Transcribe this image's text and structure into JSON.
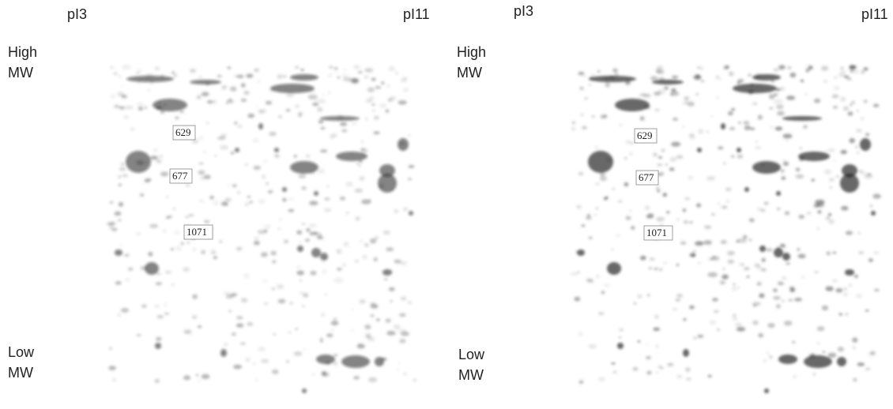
{
  "panels": [
    {
      "pi_low": "pI3",
      "pi_high": "pI11",
      "high_mw": [
        "High",
        "MW"
      ],
      "low_mw": [
        "Low",
        "MW"
      ],
      "spots": [
        "629",
        "677",
        "1071"
      ]
    },
    {
      "pi_low": "pI3",
      "pi_high": "pI11",
      "high_mw": [
        "High",
        "MW"
      ],
      "low_mw": [
        "Low",
        "MW"
      ],
      "spots": [
        "629",
        "677",
        "1071"
      ]
    }
  ]
}
